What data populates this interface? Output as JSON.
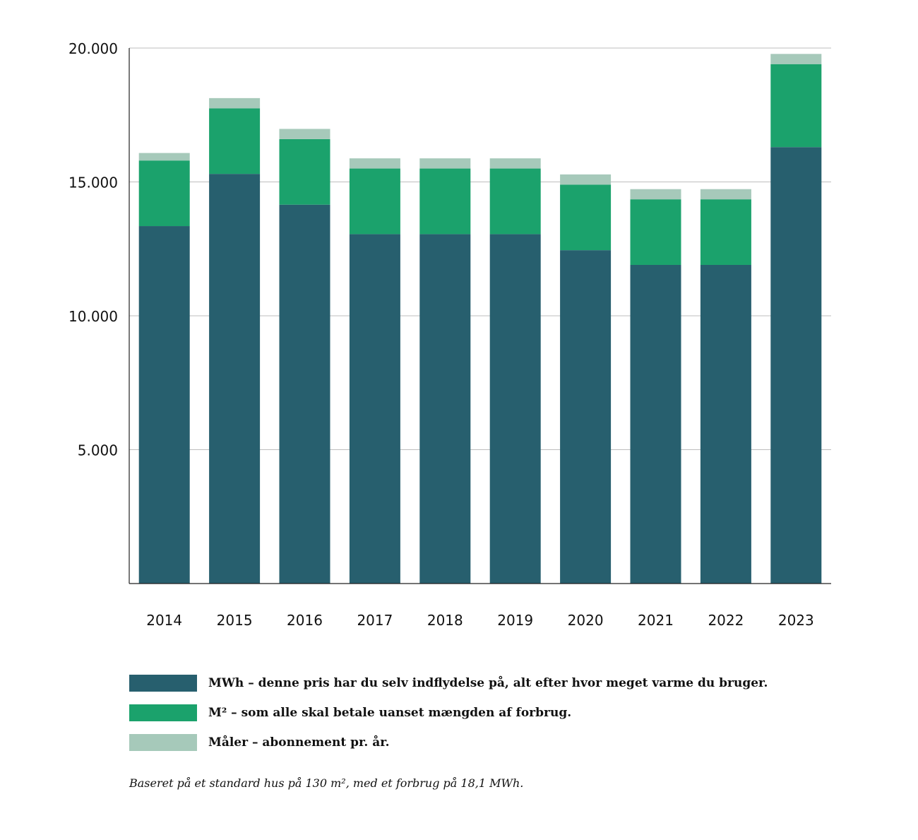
{
  "chart_data": {
    "type": "bar",
    "stacked": true,
    "categories": [
      "2014",
      "2015",
      "2016",
      "2017",
      "2018",
      "2019",
      "2020",
      "2021",
      "2022",
      "2023"
    ],
    "series": [
      {
        "name": "MWh – denne pris har du selv indflydelse på, alt efter hvor meget varme du bruger.",
        "color": "#275f6e",
        "values": [
          13350,
          15300,
          14150,
          13050,
          13050,
          13050,
          12450,
          11900,
          11900,
          16300
        ]
      },
      {
        "name": "M² – som alle skal betale uanset mængden af forbrug.",
        "color": "#1ba26c",
        "values": [
          2450,
          2450,
          2450,
          2450,
          2450,
          2450,
          2450,
          2450,
          2450,
          3100
        ]
      },
      {
        "name": "Måler – abonnement pr. år.",
        "color": "#a6c9ba",
        "values": [
          280,
          380,
          380,
          380,
          380,
          380,
          380,
          380,
          380,
          380
        ]
      }
    ],
    "ylim": [
      0,
      20000
    ],
    "yticks": [
      5000,
      10000,
      15000,
      20000
    ],
    "ytick_labels": [
      "5.000",
      "10.000",
      "15.000",
      "20.000"
    ],
    "grid": true,
    "legend_position": "bottom",
    "note": "Baseret på et standard hus på 130 m², med et forbrug på 18,1 MWh."
  }
}
